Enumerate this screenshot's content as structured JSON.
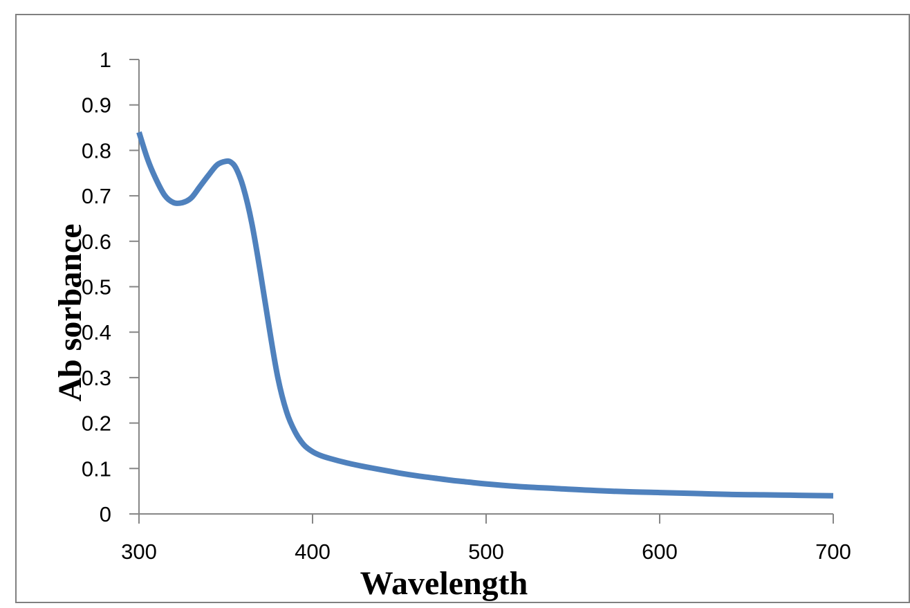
{
  "chart_data": {
    "type": "line",
    "title": "",
    "xlabel": "Wavelength",
    "ylabel": "Ab sorbance",
    "xlim": [
      300,
      700
    ],
    "ylim": [
      0,
      1
    ],
    "x_ticks": [
      "300",
      "400",
      "500",
      "600",
      "700"
    ],
    "y_ticks": [
      "0",
      "0.1",
      "0.2",
      "0.3",
      "0.4",
      "0.5",
      "0.6",
      "0.7",
      "0.8",
      "0.9",
      "1"
    ],
    "grid": false,
    "legend": "none",
    "series": [
      {
        "color": "#4f81bd",
        "x": [
          300,
          305,
          310,
          315,
          320,
          325,
          330,
          335,
          340,
          345,
          350,
          353,
          356,
          360,
          365,
          370,
          375,
          380,
          385,
          390,
          395,
          400,
          405,
          410,
          420,
          430,
          440,
          450,
          460,
          470,
          480,
          490,
          500,
          520,
          540,
          560,
          580,
          600,
          620,
          640,
          660,
          680,
          700
        ],
        "values": [
          0.84,
          0.78,
          0.735,
          0.7,
          0.685,
          0.685,
          0.695,
          0.72,
          0.745,
          0.768,
          0.776,
          0.774,
          0.76,
          0.72,
          0.64,
          0.53,
          0.41,
          0.3,
          0.225,
          0.18,
          0.152,
          0.137,
          0.128,
          0.122,
          0.112,
          0.104,
          0.097,
          0.09,
          0.084,
          0.079,
          0.074,
          0.07,
          0.066,
          0.06,
          0.056,
          0.052,
          0.049,
          0.047,
          0.045,
          0.043,
          0.042,
          0.041,
          0.04
        ]
      }
    ]
  }
}
